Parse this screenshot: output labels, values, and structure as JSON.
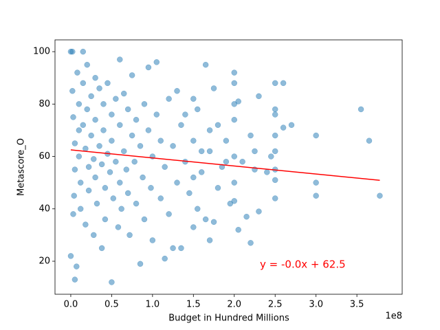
{
  "chart_data": {
    "type": "scatter",
    "x_label": "Budget in Hundred Millions",
    "y_label": "Metascore_O",
    "x_offset_label": "1e8",
    "annotation": "y = -0.0x + 62.5",
    "annotation_color": "#ff0000",
    "xlim": [
      -0.193,
      4.054
    ],
    "ylim": [
      7.4,
      104.5
    ],
    "xticks": [
      {
        "value": 0,
        "label": "0.0"
      },
      0.5,
      {
        "value": 1,
        "label": "1.0"
      },
      1.5,
      {
        "value": 2,
        "label": "2.0"
      },
      2.5,
      {
        "value": 3,
        "label": "3.0"
      },
      3.5
    ],
    "yticks": [
      20,
      40,
      60,
      80,
      100
    ],
    "grid": false,
    "series": [
      {
        "color": "#1f77b4",
        "x": [
          3.78,
          3.65,
          3.55,
          3.0,
          3.0,
          3.0,
          2.7,
          2.6,
          2.6,
          2.5,
          2.5,
          2.5,
          2.5,
          2.5,
          2.5,
          2.5,
          2.5,
          2.45,
          2.4,
          2.3,
          2.3,
          2.25,
          2.25,
          2.2,
          2.2,
          2.15,
          2.1,
          2.05,
          2.05,
          2.0,
          2.0,
          2.0,
          2.0,
          2.0,
          2.0,
          2.0,
          1.95,
          1.9,
          1.85,
          1.8,
          1.75,
          1.75,
          1.7,
          1.7,
          1.65,
          1.6,
          1.55,
          1.5,
          1.5,
          1.5,
          1.4,
          1.35,
          1.3,
          1.25,
          1.15,
          1.05,
          0.95,
          0.85,
          0.75,
          0.6,
          0.5,
          0.05,
          0.0,
          0.02,
          0.15,
          0.07,
          0.0,
          0.02,
          0.03,
          0.05,
          0.05,
          0.04,
          0.03,
          0.08,
          0.1,
          0.1,
          0.1,
          0.12,
          0.12,
          0.15,
          0.15,
          0.18,
          0.18,
          0.2,
          0.2,
          0.22,
          0.22,
          0.25,
          0.25,
          0.28,
          0.28,
          0.3,
          0.3,
          0.3,
          0.32,
          0.35,
          0.35,
          0.38,
          0.38,
          0.4,
          0.4,
          0.42,
          0.42,
          0.45,
          0.45,
          0.48,
          0.5,
          0.5,
          0.52,
          0.55,
          0.55,
          0.58,
          0.6,
          0.6,
          0.62,
          0.65,
          0.65,
          0.68,
          0.7,
          0.7,
          0.72,
          0.75,
          0.78,
          0.8,
          0.8,
          0.85,
          0.88,
          0.9,
          0.9,
          0.95,
          0.98,
          1.0,
          1.0,
          1.05,
          1.1,
          1.1,
          1.15,
          1.2,
          1.2,
          1.25,
          1.3,
          1.35,
          1.4,
          1.45,
          1.5,
          1.55,
          1.6,
          1.65,
          1.7,
          1.8,
          1.9
        ],
        "values": [
          45,
          66,
          78,
          68,
          50,
          45,
          72,
          88,
          71,
          88,
          78,
          76,
          68,
          62,
          55,
          51,
          44,
          60,
          54,
          83,
          39,
          62,
          55,
          68,
          27,
          37,
          58,
          81,
          32,
          92,
          88,
          80,
          74,
          60,
          50,
          43,
          42,
          66,
          56,
          72,
          86,
          35,
          70,
          28,
          95,
          62,
          40,
          82,
          52,
          33,
          76,
          25,
          85,
          25,
          21,
          96,
          94,
          19,
          91,
          97,
          12,
          13,
          100,
          100,
          100,
          18,
          22,
          85,
          75,
          65,
          55,
          45,
          38,
          92,
          80,
          70,
          60,
          50,
          40,
          88,
          72,
          63,
          34,
          95,
          78,
          56,
          47,
          83,
          68,
          59,
          30,
          90,
          74,
          52,
          42,
          86,
          64,
          57,
          25,
          80,
          70,
          48,
          36,
          88,
          61,
          54,
          76,
          66,
          44,
          82,
          58,
          33,
          72,
          50,
          40,
          84,
          62,
          55,
          78,
          46,
          30,
          68,
          58,
          74,
          42,
          64,
          52,
          80,
          36,
          70,
          48,
          60,
          28,
          76,
          66,
          44,
          56,
          82,
          38,
          64,
          50,
          72,
          58,
          46,
          66,
          78,
          54,
          36,
          62,
          48,
          58
        ]
      }
    ],
    "fit": {
      "color": "#ff0000",
      "x": [
        0,
        3.78
      ],
      "values": [
        62.5,
        50.9
      ]
    }
  }
}
